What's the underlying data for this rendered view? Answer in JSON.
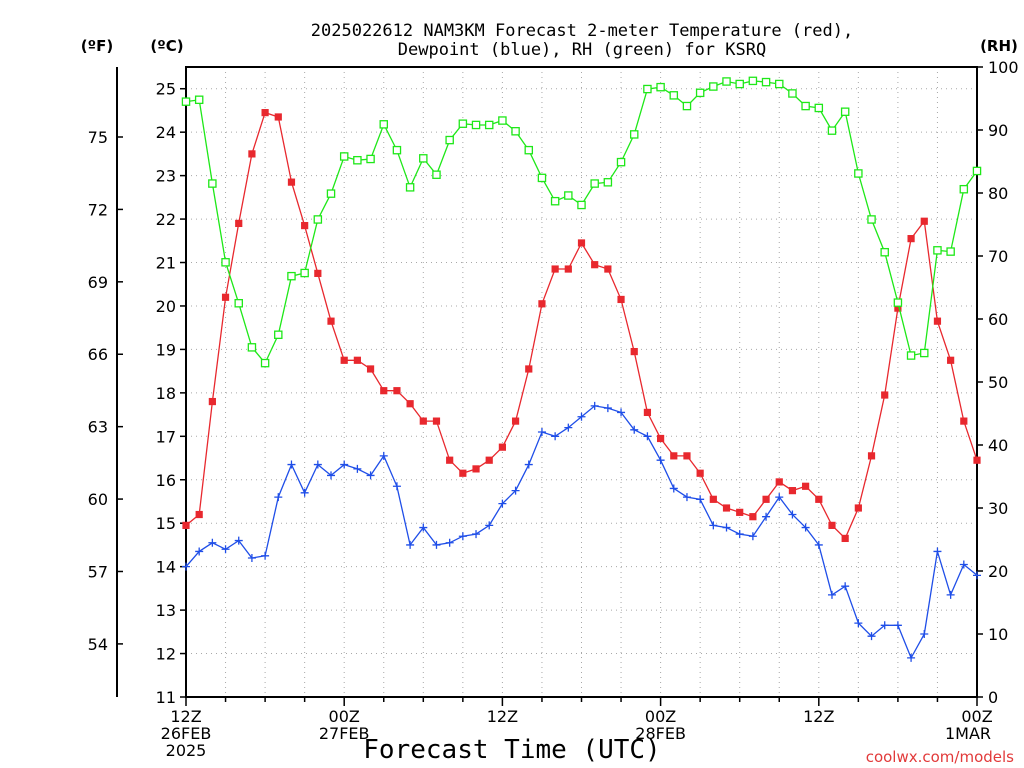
{
  "chart_data": {
    "type": "line",
    "title": "2025022612 NAM3KM Forecast 2-meter Temperature (red),",
    "subtitle": "Dewpoint (blue), RH (green) for KSRQ",
    "xlabel": "Forecast Time (UTC)",
    "watermark": "coolwx.com/models",
    "left_outer_axis_label": "(ºF)",
    "left_axis_label": "(ºC)",
    "right_axis_label": "(RH)",
    "x_range_hours": [
      0,
      60
    ],
    "celsius_range": [
      11,
      25.5
    ],
    "rh_range": [
      0,
      100
    ],
    "celsius_ticks": [
      "11",
      "12",
      "13",
      "14",
      "15",
      "16",
      "17",
      "18",
      "19",
      "20",
      "21",
      "22",
      "23",
      "24",
      "25"
    ],
    "fahrenheit_ticks": [
      "54",
      "57",
      "60",
      "63",
      "66",
      "69",
      "72",
      "75"
    ],
    "rh_ticks": [
      "0",
      "10",
      "20",
      "30",
      "40",
      "50",
      "60",
      "70",
      "80",
      "90",
      "100"
    ],
    "x_ticks": [
      {
        "hour": 0,
        "lines": [
          "12Z",
          "26FEB",
          "2025"
        ]
      },
      {
        "hour": 12,
        "lines": [
          "00Z",
          "27FEB"
        ]
      },
      {
        "hour": 24,
        "lines": [
          "12Z"
        ]
      },
      {
        "hour": 36,
        "lines": [
          "00Z",
          "28FEB"
        ]
      },
      {
        "hour": 48,
        "lines": [
          "12Z"
        ]
      },
      {
        "hour": 60,
        "lines": [
          "00Z",
          "1MAR"
        ]
      }
    ],
    "grid": true,
    "series": [
      {
        "name": "Temperature",
        "axis": "celsius",
        "color": "#e8282e",
        "marker": "square-filled",
        "values": [
          14.95,
          15.2,
          17.8,
          20.2,
          21.9,
          23.5,
          24.45,
          24.35,
          22.85,
          21.85,
          20.75,
          19.65,
          18.75,
          18.75,
          18.55,
          18.05,
          18.05,
          17.75,
          17.35,
          17.35,
          16.45,
          16.15,
          16.25,
          16.45,
          16.75,
          17.35,
          18.55,
          20.05,
          20.85,
          20.85,
          21.45,
          20.95,
          20.85,
          20.15,
          18.95,
          17.55,
          16.95,
          16.55,
          16.55,
          16.15,
          15.55,
          15.35,
          15.25,
          15.15,
          15.55,
          15.95,
          15.75,
          15.85,
          15.55,
          14.95,
          14.65,
          15.35,
          16.55,
          17.95,
          19.95,
          21.55,
          21.95,
          19.65,
          18.75,
          17.35,
          16.45
        ]
      },
      {
        "name": "Dewpoint",
        "axis": "celsius",
        "color": "#1f4ee8",
        "marker": "plus",
        "values": [
          14.0,
          14.35,
          14.55,
          14.4,
          14.6,
          14.2,
          14.25,
          15.6,
          16.35,
          15.7,
          16.35,
          16.1,
          16.35,
          16.25,
          16.1,
          16.55,
          15.85,
          14.5,
          14.9,
          14.5,
          14.55,
          14.7,
          14.75,
          14.95,
          15.45,
          15.75,
          16.35,
          17.1,
          17.0,
          17.2,
          17.45,
          17.7,
          17.65,
          17.55,
          17.15,
          17.0,
          16.45,
          15.8,
          15.6,
          15.55,
          14.95,
          14.9,
          14.75,
          14.7,
          15.15,
          15.6,
          15.2,
          14.9,
          14.5,
          13.35,
          13.55,
          12.7,
          12.4,
          12.65,
          12.65,
          11.9,
          12.45,
          14.35,
          13.35,
          14.05,
          13.8
        ]
      },
      {
        "name": "RH",
        "axis": "rh",
        "color": "#1ee818",
        "marker": "square-open",
        "values": [
          94.5,
          94.8,
          81.5,
          69.0,
          62.5,
          55.5,
          53.0,
          57.5,
          66.8,
          67.3,
          75.8,
          79.9,
          85.8,
          85.2,
          85.4,
          90.9,
          86.8,
          80.9,
          85.5,
          82.9,
          88.4,
          91.0,
          90.8,
          90.8,
          91.5,
          89.8,
          86.8,
          82.4,
          78.7,
          79.6,
          78.1,
          81.5,
          81.7,
          84.9,
          89.3,
          96.5,
          96.8,
          95.5,
          93.8,
          95.9,
          96.9,
          97.7,
          97.3,
          97.8,
          97.6,
          97.3,
          95.8,
          93.8,
          93.5,
          89.9,
          92.9,
          83.1,
          75.8,
          70.6,
          62.6,
          54.2,
          54.6,
          70.9,
          70.7,
          80.6,
          83.5
        ]
      }
    ]
  }
}
